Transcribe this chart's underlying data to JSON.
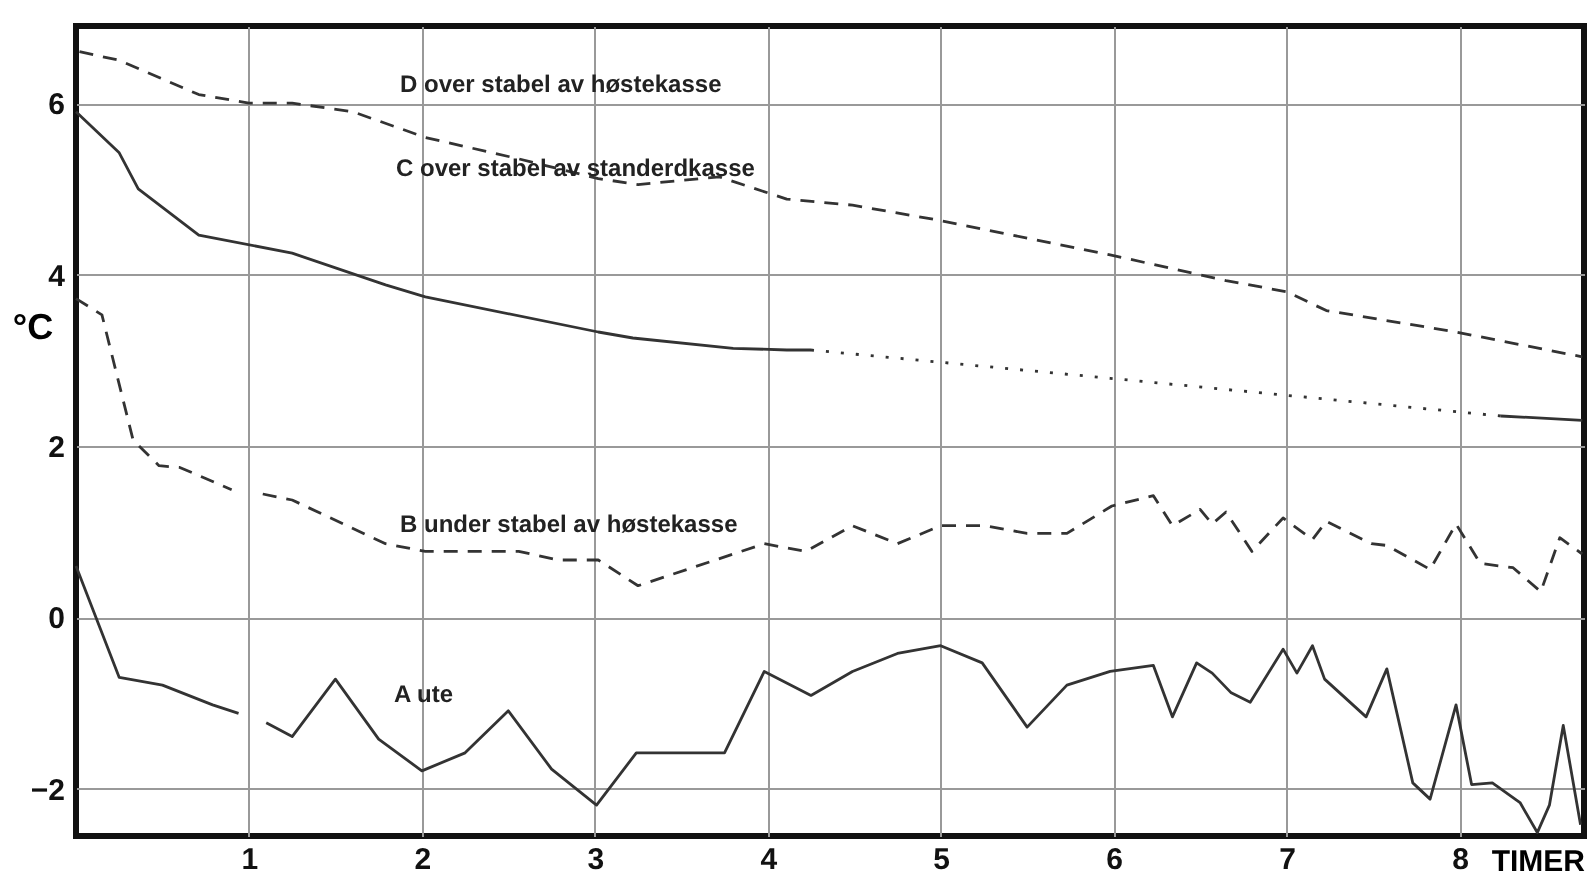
{
  "chart_data": {
    "type": "line",
    "xlabel": "TIMER",
    "ylabel": "°C",
    "xlim": [
      0,
      8.72
    ],
    "ylim": [
      -2.55,
      6.9
    ],
    "xticks": [
      1,
      2,
      3,
      4,
      5,
      6,
      7,
      8
    ],
    "yticks": [
      -2,
      0,
      2,
      4,
      6
    ],
    "grid": true,
    "series": [
      {
        "color": "#333333",
        "line_style": "dashed",
        "x": [
          0.02,
          0.25,
          0.71,
          1.0,
          1.25,
          1.6,
          2.02,
          2.56,
          3.02,
          3.25,
          3.72,
          4.11,
          4.49,
          5.0,
          5.98,
          6.65,
          7.0,
          7.23,
          7.98,
          8.71
        ],
        "values": [
          6.6,
          6.5,
          6.1,
          6.0,
          6.0,
          5.9,
          5.6,
          5.35,
          5.12,
          5.05,
          5.14,
          4.88,
          4.81,
          4.63,
          4.23,
          3.93,
          3.8,
          3.58,
          3.33,
          3.04
        ]
      },
      {
        "color": "#333333",
        "line_style": "solid",
        "x": [
          0,
          0.25,
          0.36,
          0.71,
          1.25,
          1.79,
          2.02,
          3.02,
          3.22,
          3.8,
          4.11,
          4.25
        ],
        "values": [
          5.9,
          5.42,
          5.0,
          4.46,
          4.25,
          3.88,
          3.74,
          3.33,
          3.26,
          3.14,
          3.12,
          3.12
        ]
      },
      {
        "color": "#333333",
        "line_style": "dotted",
        "x": [
          4.25,
          5.98,
          8.24
        ],
        "values": [
          3.12,
          2.79,
          2.35
        ]
      },
      {
        "color": "#333333",
        "line_style": "solid",
        "x": [
          8.24,
          8.71
        ],
        "values": [
          2.35,
          2.3
        ]
      },
      {
        "color": "#333333",
        "line_style": "dashed",
        "x": [
          0,
          0.15,
          0.33,
          0.48,
          0.6,
          0.9,
          1.0,
          1.08,
          1.25,
          1.79,
          2.02,
          2.56,
          2.79,
          3.02,
          3.25,
          3.98,
          4.22,
          4.49,
          4.75,
          5.0,
          5.26,
          5.5,
          5.73,
          5.99,
          6.23,
          6.34,
          6.5,
          6.57,
          6.65,
          6.8,
          6.98,
          7.15,
          7.23,
          7.49,
          7.58,
          7.83,
          7.98,
          8.12,
          8.31,
          8.47,
          8.58,
          8.71
        ],
        "values": [
          3.72,
          3.53,
          2.07,
          1.77,
          1.75,
          1.49,
          null,
          1.44,
          1.37,
          0.86,
          0.77,
          0.77,
          0.67,
          0.67,
          0.37,
          0.86,
          0.77,
          1.07,
          0.86,
          1.07,
          1.07,
          0.98,
          0.98,
          1.3,
          1.42,
          1.07,
          1.26,
          1.09,
          1.23,
          0.77,
          1.16,
          0.91,
          1.12,
          0.86,
          0.84,
          0.56,
          1.09,
          0.63,
          0.58,
          0.3,
          0.93,
          0.74
        ]
      },
      {
        "color": "#333333",
        "line_style": "solid",
        "x": [
          0,
          0.25,
          0.5,
          0.79,
          0.94,
          1.02,
          1.1,
          1.25,
          1.5,
          1.75,
          2.0,
          2.25,
          2.5,
          2.75,
          3.01,
          3.24,
          3.75,
          3.98,
          4.25,
          4.49,
          4.75,
          5.0,
          5.24,
          5.5,
          5.73,
          5.98,
          6.23,
          6.34,
          6.48,
          6.57,
          6.68,
          6.79,
          6.98,
          7.06,
          7.15,
          7.22,
          7.46,
          7.58,
          7.73,
          7.83,
          7.98,
          8.07,
          8.19,
          8.35,
          8.45,
          8.52,
          8.6,
          8.7
        ],
        "values": [
          0.6,
          -0.7,
          -0.79,
          -1.02,
          -1.12,
          null,
          -1.23,
          -1.39,
          -0.72,
          -1.42,
          -1.79,
          -1.58,
          -1.09,
          -1.77,
          -2.19,
          -1.58,
          -1.58,
          -0.63,
          -0.91,
          -0.63,
          -0.42,
          -0.33,
          -0.53,
          -1.28,
          -0.79,
          -0.63,
          -0.56,
          -1.16,
          -0.53,
          -0.65,
          -0.88,
          -0.99,
          -0.37,
          -0.65,
          -0.33,
          -0.72,
          -1.16,
          -0.6,
          -1.93,
          -2.12,
          -1.02,
          -1.95,
          -1.93,
          -2.16,
          -2.51,
          -2.19,
          -1.26,
          -2.42
        ]
      }
    ],
    "annotations": [
      "D  over stabel av høstekasse",
      "C  over stabel av standerdkasse",
      "B  under stabel av høstekasse",
      "A  ute"
    ]
  }
}
